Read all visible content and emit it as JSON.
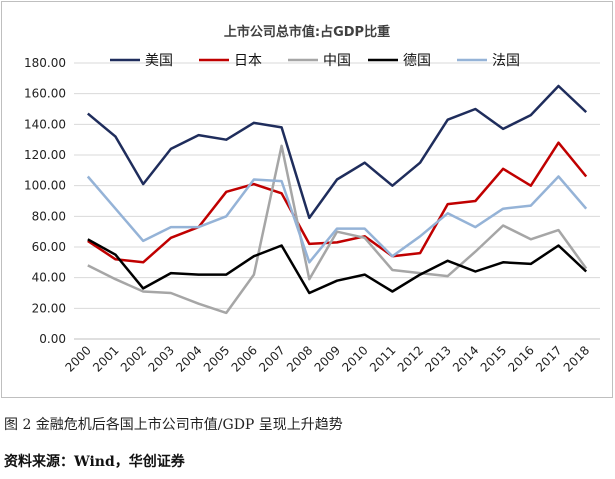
{
  "chart_data": {
    "type": "line",
    "title": "上市公司总市值:占GDP比重",
    "categories": [
      "2000",
      "2001",
      "2002",
      "2003",
      "2004",
      "2005",
      "2006",
      "2007",
      "2008",
      "2009",
      "2010",
      "2011",
      "2012",
      "2013",
      "2014",
      "2015",
      "2016",
      "2017",
      "2018"
    ],
    "ylim": [
      0,
      180
    ],
    "yticks": [
      "0.00",
      "20.00",
      "40.00",
      "60.00",
      "80.00",
      "100.00",
      "120.00",
      "140.00",
      "160.00",
      "180.00"
    ],
    "grid": true,
    "legend_position": "top",
    "series": [
      {
        "name": "美国",
        "color": "#1f2d5c",
        "values": [
          147,
          132,
          101,
          124,
          133,
          130,
          141,
          138,
          79,
          104,
          115,
          100,
          115,
          143,
          150,
          137,
          146,
          165,
          148
        ]
      },
      {
        "name": "日本",
        "color": "#c00000",
        "values": [
          64,
          52,
          50,
          66,
          73,
          96,
          101,
          95,
          62,
          63,
          67,
          54,
          56,
          88,
          90,
          111,
          100,
          128,
          106
        ]
      },
      {
        "name": "中国",
        "color": "#a6a6a6",
        "values": [
          48,
          39,
          31,
          30,
          23,
          17,
          42,
          126,
          39,
          70,
          66,
          45,
          43,
          41,
          57,
          74,
          65,
          71,
          46
        ]
      },
      {
        "name": "德国",
        "color": "#000000",
        "values": [
          65,
          55,
          33,
          43,
          42,
          42,
          54,
          61,
          30,
          38,
          42,
          31,
          42,
          51,
          44,
          50,
          49,
          61,
          44
        ]
      },
      {
        "name": "法国",
        "color": "#95b3d7",
        "values": [
          106,
          85,
          64,
          73,
          73,
          80,
          104,
          103,
          50,
          72,
          72,
          54,
          67,
          82,
          73,
          85,
          87,
          106,
          85
        ]
      }
    ]
  },
  "caption": "图 2   金融危机后各国上市公司市值/GDP 呈现上升趋势",
  "source": "资料来源：Wind，华创证券"
}
